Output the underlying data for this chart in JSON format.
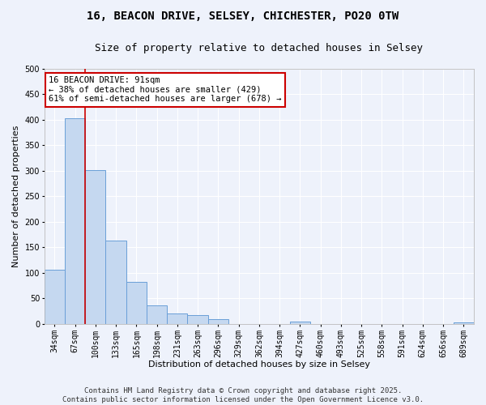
{
  "title_line1": "16, BEACON DRIVE, SELSEY, CHICHESTER, PO20 0TW",
  "title_line2": "Size of property relative to detached houses in Selsey",
  "xlabel": "Distribution of detached houses by size in Selsey",
  "ylabel": "Number of detached properties",
  "categories": [
    "34sqm",
    "67sqm",
    "100sqm",
    "133sqm",
    "165sqm",
    "198sqm",
    "231sqm",
    "263sqm",
    "296sqm",
    "329sqm",
    "362sqm",
    "394sqm",
    "427sqm",
    "460sqm",
    "493sqm",
    "525sqm",
    "558sqm",
    "591sqm",
    "624sqm",
    "656sqm",
    "689sqm"
  ],
  "values": [
    107,
    403,
    302,
    163,
    83,
    37,
    20,
    18,
    10,
    0,
    0,
    0,
    5,
    0,
    0,
    0,
    0,
    0,
    0,
    0,
    3
  ],
  "bar_color": "#c5d8f0",
  "bar_edge_color": "#6a9fd8",
  "vline_color": "#cc0000",
  "annotation_text": "16 BEACON DRIVE: 91sqm\n← 38% of detached houses are smaller (429)\n61% of semi-detached houses are larger (678) →",
  "annotation_box_color": "white",
  "annotation_box_edge_color": "#cc0000",
  "ylim": [
    0,
    500
  ],
  "yticks": [
    0,
    50,
    100,
    150,
    200,
    250,
    300,
    350,
    400,
    450,
    500
  ],
  "background_color": "#eef2fb",
  "grid_color": "white",
  "footer_line1": "Contains HM Land Registry data © Crown copyright and database right 2025.",
  "footer_line2": "Contains public sector information licensed under the Open Government Licence v3.0.",
  "title_fontsize": 10,
  "subtitle_fontsize": 9,
  "axis_label_fontsize": 8,
  "tick_fontsize": 7,
  "annotation_fontsize": 7.5,
  "footer_fontsize": 6.5
}
